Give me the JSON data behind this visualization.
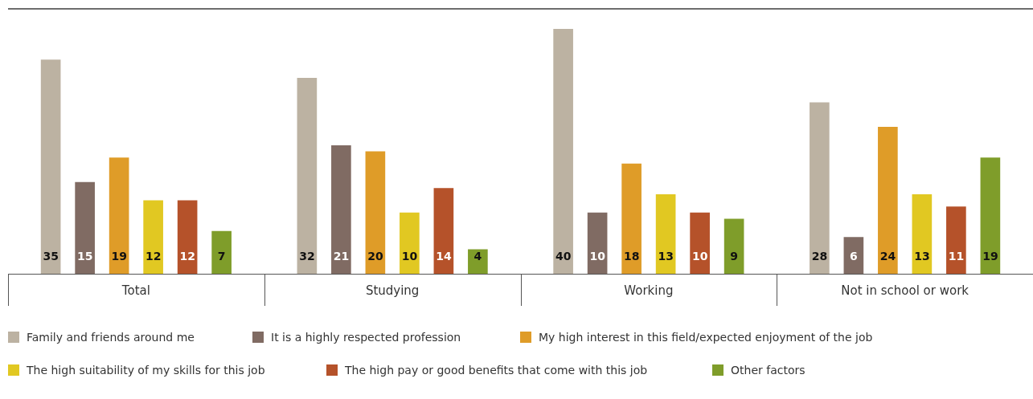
{
  "chart_data": {
    "type": "bar",
    "categories": [
      "Total",
      "Studying",
      "Working",
      "Not in school or work"
    ],
    "series": [
      {
        "name": "Family and friends around me",
        "color": "#bcb2a2",
        "values": [
          35,
          32,
          40,
          28
        ]
      },
      {
        "name": "It is a highly respected profession",
        "color": "#806b63",
        "values": [
          15,
          21,
          10,
          6
        ]
      },
      {
        "name": "My high interest in this field/expected enjoyment of the job",
        "color": "#df9c28",
        "values": [
          19,
          20,
          18,
          24
        ]
      },
      {
        "name": "The high suitability of my skills for this job",
        "color": "#e1c822",
        "values": [
          12,
          10,
          13,
          13
        ]
      },
      {
        "name": "The high pay or good benefits that come with this job",
        "color": "#b5522a",
        "values": [
          12,
          14,
          10,
          11
        ]
      },
      {
        "name": "Other factors",
        "color": "#7f9d2a",
        "values": [
          7,
          4,
          9,
          19
        ]
      }
    ],
    "tick_labels": "x",
    "grid": false,
    "legend": "bottom",
    "data_labels": true
  }
}
